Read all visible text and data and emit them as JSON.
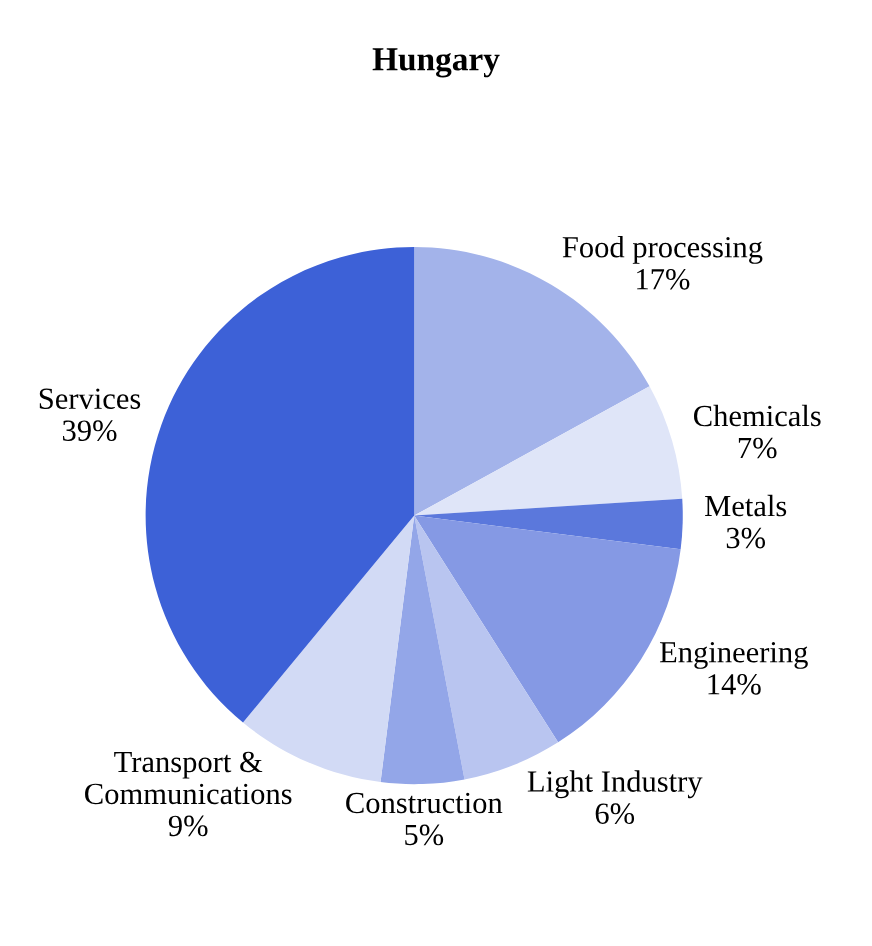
{
  "chart_data": {
    "type": "pie",
    "title": "Hungary",
    "categories": [
      "Food processing",
      "Chemicals",
      "Metals",
      "Engineering",
      "Light Industry",
      "Construction",
      "Transport & Communications",
      "Services"
    ],
    "values": [
      17,
      7,
      3,
      14,
      6,
      5,
      9,
      39
    ],
    "value_labels": [
      "17%",
      "7%",
      "3%",
      "14%",
      "6%",
      "5%",
      "9%",
      "39%"
    ],
    "colors": [
      "#a3b3ea",
      "#dfe5f8",
      "#5b78dc",
      "#8599e4",
      "#b9c5f0",
      "#93a6e8",
      "#d2daf5",
      "#3d61d7"
    ],
    "legend": false
  }
}
